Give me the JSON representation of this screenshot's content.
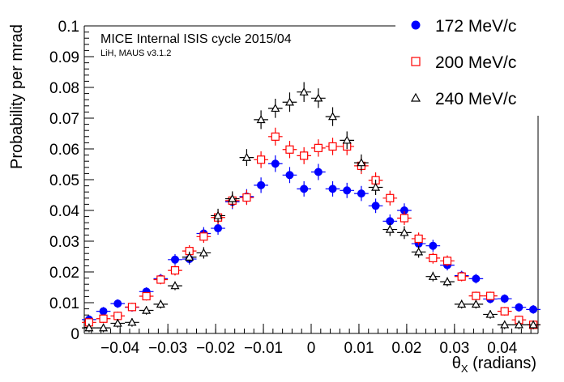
{
  "chart_data": {
    "type": "scatter",
    "title": "MICE Internal ISIS cycle 2015/04",
    "subtitle": "LiH, MAUS v3.1.2",
    "xlabel": "θ_X (radians)",
    "xlabel_main": "θ",
    "xlabel_sub": "X",
    "xlabel_rest": " (radians)",
    "ylabel": "Probability per mrad",
    "xlim": [
      -0.0475,
      0.0475
    ],
    "ylim": [
      0,
      0.1
    ],
    "x_ticks": [
      "−0.04",
      "−0.03",
      "−0.02",
      "−0.01",
      "0",
      "0.01",
      "0.02",
      "0.03",
      "0.04"
    ],
    "x_tick_values": [
      -0.04,
      -0.03,
      -0.02,
      -0.01,
      0,
      0.01,
      0.02,
      0.03,
      0.04
    ],
    "y_ticks": [
      "0",
      "0.01",
      "0.02",
      "0.03",
      "0.04",
      "0.05",
      "0.06",
      "0.07",
      "0.08",
      "0.09",
      "0.1"
    ],
    "y_tick_values": [
      0,
      0.01,
      0.02,
      0.03,
      0.04,
      0.05,
      0.06,
      0.07,
      0.08,
      0.09,
      0.1
    ],
    "grid": false,
    "legend_position": "top-right",
    "bin_halfwidth": 0.0015,
    "x": [
      -0.0465,
      -0.0435,
      -0.0405,
      -0.0375,
      -0.0345,
      -0.0315,
      -0.0285,
      -0.0255,
      -0.0225,
      -0.0195,
      -0.0165,
      -0.0135,
      -0.0105,
      -0.0075,
      -0.0045,
      -0.0015,
      0.0015,
      0.0045,
      0.0075,
      0.0105,
      0.0135,
      0.0165,
      0.0195,
      0.0225,
      0.0255,
      0.0285,
      0.0315,
      0.0345,
      0.0375,
      0.0405,
      0.0435,
      0.0465
    ],
    "series": [
      {
        "name": "172 MeV/c",
        "marker": "filled-circle",
        "color": "#0000ff",
        "values": [
          0.0045,
          0.0072,
          0.0097,
          0.0085,
          0.0136,
          0.0178,
          0.024,
          0.0242,
          0.0325,
          0.0342,
          0.0428,
          0.0445,
          0.0482,
          0.0552,
          0.0515,
          0.047,
          0.0525,
          0.047,
          0.0465,
          0.0455,
          0.0415,
          0.0365,
          0.04,
          0.0292,
          0.0285,
          0.0222,
          0.0188,
          0.0178,
          0.0112,
          0.0113,
          0.0085,
          0.0078
        ]
      },
      {
        "name": "200 MeV/c",
        "marker": "open-square",
        "color": "#ff0000",
        "values": [
          0.0036,
          0.0048,
          0.0057,
          0.0086,
          0.0121,
          0.0175,
          0.0205,
          0.0268,
          0.0315,
          0.0377,
          0.0432,
          0.0442,
          0.0565,
          0.064,
          0.0598,
          0.0578,
          0.0603,
          0.0608,
          0.0608,
          0.0545,
          0.0498,
          0.044,
          0.0375,
          0.0308,
          0.0245,
          0.0236,
          0.0185,
          0.0122,
          0.0122,
          0.0072,
          0.0044,
          0.0028
        ]
      },
      {
        "name": "240 MeV/c",
        "marker": "open-triangle",
        "color": "#000000",
        "values": [
          0.0018,
          0.0018,
          0.0033,
          0.0036,
          0.0075,
          0.0095,
          0.0155,
          0.0248,
          0.0262,
          0.0383,
          0.0438,
          0.0572,
          0.0695,
          0.0732,
          0.0752,
          0.0785,
          0.0765,
          0.0705,
          0.0628,
          0.0555,
          0.0475,
          0.0338,
          0.0328,
          0.0265,
          0.0185,
          0.0168,
          0.0095,
          0.0095,
          0.0062,
          0.0028,
          0.0028,
          0.0028
        ]
      }
    ]
  }
}
